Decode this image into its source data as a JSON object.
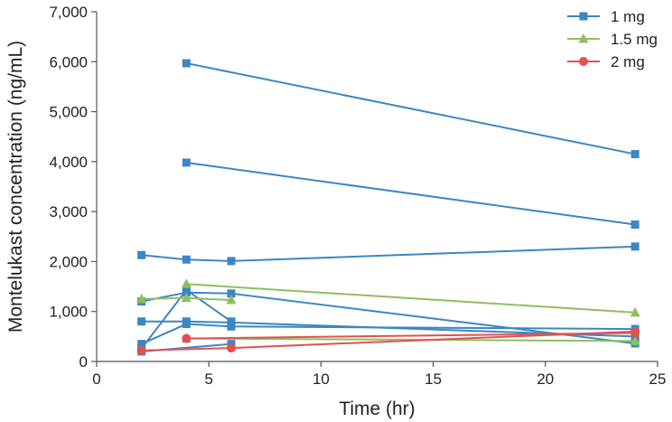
{
  "chart_data": {
    "type": "line",
    "xlabel": "Time (hr)",
    "ylabel": "Montelukast concentration (ng/mL)",
    "xlim": [
      0,
      25
    ],
    "ylim": [
      0,
      7000
    ],
    "xticks": [
      0,
      5,
      10,
      15,
      20,
      25
    ],
    "yticks": [
      0,
      1000,
      2000,
      3000,
      4000,
      5000,
      6000,
      7000
    ],
    "xtick_labels": [
      "0",
      "5",
      "10",
      "15",
      "20",
      "25"
    ],
    "ytick_labels": [
      "0",
      "1,000",
      "2,000",
      "3,000",
      "4,000",
      "5,000",
      "6,000",
      "7,000"
    ],
    "grid": false,
    "legend_position": "top-right",
    "series": [
      {
        "name": "1 mg",
        "marker": "square",
        "color": "#3a87c4",
        "x": [
          4,
          24
        ],
        "y": [
          5970,
          4150
        ]
      },
      {
        "name": "1 mg",
        "marker": "square",
        "color": "#3a87c4",
        "x": [
          4,
          24
        ],
        "y": [
          3980,
          2740
        ]
      },
      {
        "name": "1 mg",
        "marker": "square",
        "color": "#3a87c4",
        "x": [
          2,
          4,
          6,
          24
        ],
        "y": [
          2130,
          2040,
          2010,
          2300
        ]
      },
      {
        "name": "1 mg",
        "marker": "square",
        "color": "#3a87c4",
        "x": [
          2,
          4,
          6,
          24
        ],
        "y": [
          1200,
          1380,
          1360,
          360
        ]
      },
      {
        "name": "1 mg",
        "marker": "square",
        "color": "#3a87c4",
        "x": [
          2,
          4,
          6,
          24
        ],
        "y": [
          800,
          800,
          780,
          500
        ]
      },
      {
        "name": "1 mg",
        "marker": "square",
        "color": "#3a87c4",
        "x": [
          2,
          4,
          6,
          24
        ],
        "y": [
          350,
          750,
          700,
          650
        ]
      },
      {
        "name": "1 mg",
        "marker": "square",
        "color": "#3a87c4",
        "x": [
          2,
          4,
          6
        ],
        "y": [
          260,
          1430,
          800
        ]
      },
      {
        "name": "1 mg",
        "marker": "square",
        "color": "#3a87c4",
        "x": [
          2,
          6
        ],
        "y": [
          200,
          350
        ]
      },
      {
        "name": "1.5 mg",
        "marker": "triangle",
        "color": "#8ebf5f",
        "x": [
          2,
          4,
          6
        ],
        "y": [
          1250,
          1270,
          1230
        ]
      },
      {
        "name": "1.5 mg",
        "marker": "triangle",
        "color": "#8ebf5f",
        "x": [
          4,
          24
        ],
        "y": [
          1550,
          980
        ]
      },
      {
        "name": "1.5 mg",
        "marker": "triangle",
        "color": "#8ebf5f",
        "x": [
          4,
          24
        ],
        "y": [
          460,
          410
        ]
      },
      {
        "name": "2 mg",
        "marker": "circle",
        "color": "#e05252",
        "x": [
          2,
          6,
          24
        ],
        "y": [
          220,
          270,
          600
        ]
      },
      {
        "name": "2 mg",
        "marker": "circle",
        "color": "#e05252",
        "x": [
          4,
          24
        ],
        "y": [
          460,
          570
        ]
      }
    ],
    "legend": [
      {
        "name": "1 mg",
        "marker": "square",
        "color": "#3a87c4"
      },
      {
        "name": "1.5 mg",
        "marker": "triangle",
        "color": "#8ebf5f"
      },
      {
        "name": "2 mg",
        "marker": "circle",
        "color": "#e05252"
      }
    ]
  }
}
